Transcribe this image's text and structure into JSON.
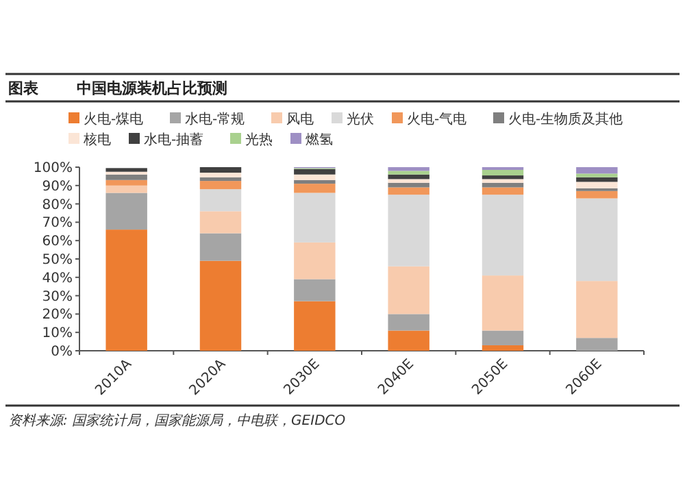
{
  "chart_data": {
    "type": "bar",
    "title": "中国电源装机占比预测",
    "stacked": true,
    "legend": "top",
    "annotations": [
      "图表",
      "资料来源: 国家统计局，国家能源局，中电联，GEIDCO"
    ],
    "categories": [
      "2010A",
      "2020A",
      "2030E",
      "2040E",
      "2050E",
      "2060E"
    ],
    "ylim": [
      0,
      100
    ],
    "yticks": [
      {
        "value": 0,
        "label": "0%"
      },
      {
        "value": 10,
        "label": "10%"
      },
      {
        "value": 20,
        "label": "20%"
      },
      {
        "value": 30,
        "label": "30%"
      },
      {
        "value": 40,
        "label": "40%"
      },
      {
        "value": 50,
        "label": "50%"
      },
      {
        "value": 60,
        "label": "60%"
      },
      {
        "value": 70,
        "label": "70%"
      },
      {
        "value": 80,
        "label": "80%"
      },
      {
        "value": 90,
        "label": "90%"
      },
      {
        "value": 100,
        "label": "100%"
      }
    ],
    "series": [
      {
        "name": "火电-煤电",
        "color": "#ed7d31",
        "values": [
          66,
          49,
          27,
          11,
          3,
          0
        ]
      },
      {
        "name": "水电-常规",
        "color": "#a5a5a5",
        "values": [
          20,
          15,
          12,
          9,
          8,
          7
        ]
      },
      {
        "name": "风电",
        "color": "#f8cbad",
        "values": [
          4,
          12,
          20,
          26,
          30,
          31
        ]
      },
      {
        "name": "光伏",
        "color": "#d9d9d9",
        "values": [
          null,
          12,
          27,
          39,
          44,
          45
        ]
      },
      {
        "name": "火电-气电",
        "color": "#f1975a",
        "values": [
          3,
          4.5,
          5,
          4,
          4,
          4
        ]
      },
      {
        "name": "火电-生物质及其他",
        "color": "#7f7f7f",
        "values": [
          3,
          2,
          2,
          2.5,
          2.5,
          1.5
        ]
      },
      {
        "name": "核电",
        "color": "#fbe5d6",
        "values": [
          1.5,
          2.5,
          3,
          2,
          2,
          3.5
        ]
      },
      {
        "name": "水电-抽蓄",
        "color": "#404040",
        "values": [
          2,
          3,
          3,
          2.5,
          2,
          2.5
        ]
      },
      {
        "name": "光热",
        "color": "#a9d18e",
        "values": [
          0,
          0,
          0.5,
          2,
          3,
          2
        ]
      },
      {
        "name": "燃氢",
        "color": "#9e8fc4",
        "values": [
          0,
          0,
          0.5,
          2,
          1.5,
          3.5
        ]
      }
    ]
  }
}
